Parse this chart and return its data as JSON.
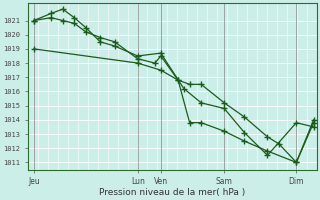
{
  "xlabel": "Pression niveau de la mer( hPa )",
  "bg_color": "#cceee8",
  "grid_color": "#b8ddd8",
  "line_color": "#1a5c1a",
  "ylim": [
    1010.5,
    1022.2
  ],
  "xlim": [
    0,
    100
  ],
  "yticks": [
    1011,
    1012,
    1013,
    1014,
    1015,
    1016,
    1017,
    1018,
    1019,
    1020,
    1021
  ],
  "xtick_positions": [
    2,
    38,
    46,
    68,
    93
  ],
  "xtick_labels": [
    "Jeu",
    "Lun",
    "Ven",
    "Sam",
    "Dim"
  ],
  "vline_positions": [
    2,
    38,
    46,
    68,
    93
  ],
  "series": [
    {
      "x": [
        2,
        8,
        12,
        16,
        20,
        25,
        30,
        38,
        46,
        54,
        60,
        68,
        75,
        83,
        93,
        99
      ],
      "y": [
        1021.0,
        1021.5,
        1021.8,
        1021.2,
        1020.5,
        1019.5,
        1019.2,
        1018.5,
        1018.7,
        1016.2,
        1015.2,
        1014.8,
        1013.1,
        1011.5,
        1013.8,
        1013.5
      ]
    },
    {
      "x": [
        2,
        8,
        12,
        16,
        20,
        25,
        30,
        38,
        44,
        46,
        52,
        56,
        60,
        68,
        75,
        83,
        93,
        99
      ],
      "y": [
        1021.0,
        1021.2,
        1021.0,
        1020.8,
        1020.2,
        1019.8,
        1019.5,
        1018.3,
        1018.0,
        1018.5,
        1016.8,
        1013.8,
        1013.8,
        1013.2,
        1012.5,
        1011.8,
        1011.0,
        1014.0
      ]
    },
    {
      "x": [
        2,
        38,
        46,
        52,
        56,
        60,
        68,
        75,
        83,
        87,
        93,
        99
      ],
      "y": [
        1019.0,
        1018.0,
        1017.5,
        1016.8,
        1016.5,
        1016.5,
        1015.2,
        1014.2,
        1012.8,
        1012.3,
        1011.0,
        1013.8
      ]
    }
  ]
}
